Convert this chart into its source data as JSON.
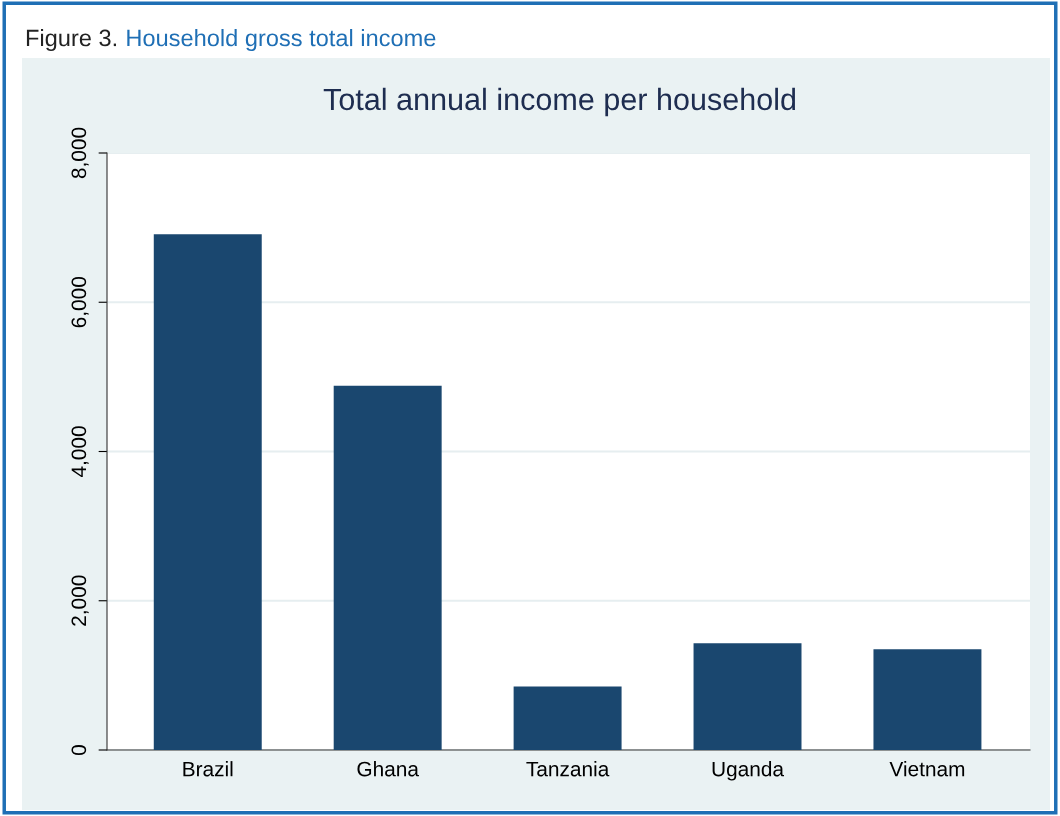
{
  "chart_data": {
    "type": "bar",
    "title": "Total annual income per household",
    "annotations": [
      "Figure 3.",
      "Household gross total income"
    ],
    "categories": [
      "Brazil",
      "Ghana",
      "Tanzania",
      "Uganda",
      "Vietnam"
    ],
    "values": [
      6910,
      4880,
      850,
      1430,
      1350
    ],
    "color": "#1a476f",
    "ylim": [
      0,
      8000
    ],
    "yticks": [
      {
        "value": 0,
        "label": "0"
      },
      {
        "value": 2000,
        "label": "2,000"
      },
      {
        "value": 4000,
        "label": "4,000"
      },
      {
        "value": 6000,
        "label": "6,000"
      },
      {
        "value": 8000,
        "label": "8,000"
      }
    ],
    "grid": "y"
  }
}
